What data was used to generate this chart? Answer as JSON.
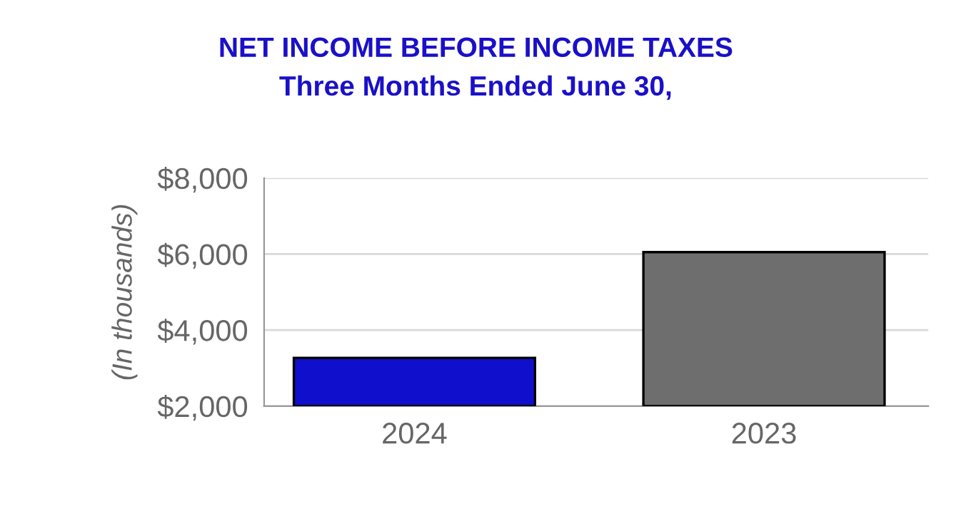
{
  "chart_data": {
    "type": "bar",
    "title": "NET INCOME BEFORE INCOME TAXES",
    "subtitle": "Three Months Ended June 30,",
    "ylabel": "(In thousands)",
    "categories": [
      "2024",
      "2023"
    ],
    "values": [
      3270,
      6050
    ],
    "colors": [
      "#1010cc",
      "#6e6e6e"
    ],
    "ylim": [
      2000,
      8000
    ],
    "yticks": [
      {
        "value": 2000,
        "label": "$2,000"
      },
      {
        "value": 4000,
        "label": "$4,000"
      },
      {
        "value": 6000,
        "label": "$6,000"
      },
      {
        "value": 8000,
        "label": "$8,000"
      }
    ],
    "grid": "y",
    "legend": false
  }
}
